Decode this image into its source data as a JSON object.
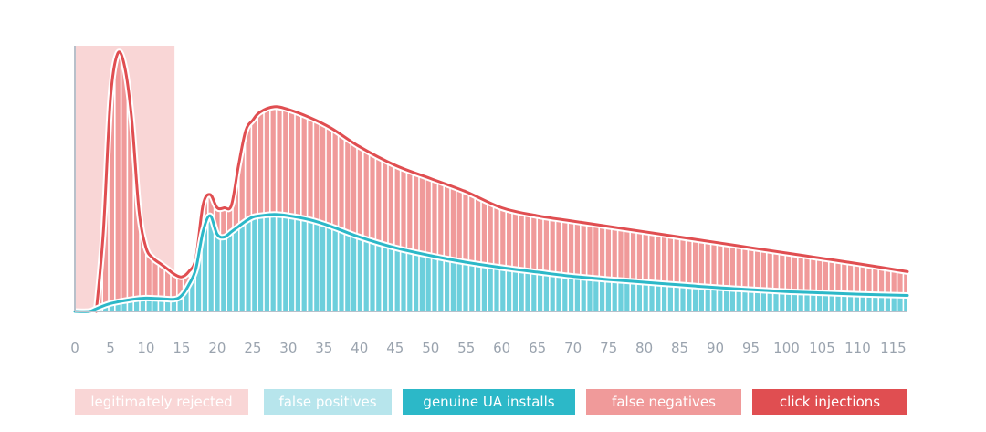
{
  "colors": {
    "legit_rejected": "#f9d6d6",
    "false_positives": "#b7e5ec",
    "genuine": "#2cb8c8",
    "false_negatives": "#f09a9a",
    "click_injections": "#e04e51",
    "axis": "#b8c0ca"
  },
  "chart_data": {
    "type": "area",
    "title": "",
    "xlabel": "",
    "ylabel": "",
    "xlim": [
      0,
      117
    ],
    "ylim": [
      0,
      100
    ],
    "x_ticks": [
      0,
      5,
      10,
      15,
      20,
      25,
      30,
      35,
      40,
      45,
      50,
      55,
      60,
      65,
      70,
      75,
      80,
      85,
      90,
      95,
      100,
      105,
      110,
      115
    ],
    "legend_position": "bottom",
    "highlight_region": {
      "label": "legitimately rejected",
      "x_start": 0,
      "x_end": 14
    },
    "series": [
      {
        "name": "click injections",
        "x": [
          3,
          4,
          5,
          6,
          7,
          8,
          9,
          10,
          11,
          12,
          13,
          14,
          15,
          16,
          17,
          18,
          19,
          20,
          21,
          22,
          23,
          24,
          25,
          26,
          28,
          30,
          33,
          36,
          40,
          45,
          50,
          55,
          60,
          65,
          70,
          75,
          80,
          85,
          90,
          95,
          100,
          105,
          110,
          117
        ],
        "values": [
          0,
          30,
          80,
          97,
          92,
          72,
          38,
          24,
          20,
          18,
          16,
          14,
          13,
          15,
          20,
          40,
          44,
          39,
          39,
          40,
          55,
          68,
          72,
          75,
          77,
          76,
          73,
          69,
          62,
          55,
          50,
          45,
          39,
          36,
          34,
          32,
          30,
          28,
          26,
          24,
          22,
          20,
          18,
          15
        ]
      },
      {
        "name": "genuine UA installs",
        "x": [
          0,
          2,
          3,
          5,
          8,
          10,
          12,
          14,
          15,
          16,
          17,
          18,
          19,
          20,
          21,
          22,
          23,
          24,
          25,
          26,
          28,
          30,
          33,
          36,
          40,
          45,
          50,
          55,
          60,
          65,
          70,
          75,
          80,
          85,
          90,
          95,
          100,
          105,
          110,
          117
        ],
        "values": [
          0,
          0,
          1,
          3,
          4.5,
          5,
          4.8,
          4.6,
          6,
          10,
          16,
          30,
          36,
          29,
          28,
          30,
          32,
          34,
          35.5,
          36,
          36.5,
          36,
          34.5,
          32,
          28,
          24,
          21,
          18.5,
          16.5,
          14.8,
          13.2,
          12,
          11,
          10,
          9,
          8.2,
          7.5,
          7,
          6.5,
          6
        ]
      }
    ]
  },
  "legend": [
    {
      "label": "legitimately rejected",
      "color": "#f9d6d6"
    },
    {
      "label": "false positives",
      "color": "#b7e5ec"
    },
    {
      "label": "genuine UA installs",
      "color": "#2cb8c8"
    },
    {
      "label": "false negatives",
      "color": "#f09a9a"
    },
    {
      "label": "click injections",
      "color": "#e04e51"
    }
  ]
}
